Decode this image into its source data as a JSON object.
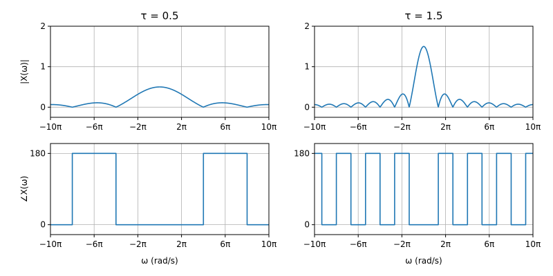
{
  "colors": {
    "line": "#1f77b4",
    "grid": "#b0b0b0",
    "axes": "#000000"
  },
  "chart_data": [
    {
      "type": "line",
      "title": "τ = 0.5",
      "xlabel": "",
      "ylabel": "|X(ω)|",
      "tau": 0.5,
      "quantity": "magnitude",
      "xlim_pi": [
        -10,
        10
      ],
      "ylim": [
        -0.25,
        2
      ],
      "xtick_labels": [
        "−10π",
        "−6π",
        "−2π",
        "2π",
        "6π",
        "10π"
      ],
      "yticks": [
        0,
        1,
        2
      ],
      "ytick_labels": [
        "0",
        "1",
        "2"
      ],
      "grid": true,
      "series": [
        {
          "sampled_points": [
            [
              -10,
              0.06
            ],
            [
              -8,
              0
            ],
            [
              -6,
              0.1
            ],
            [
              -4,
              0
            ],
            [
              -2,
              0.32
            ],
            [
              0,
              0.5
            ],
            [
              2,
              0.32
            ],
            [
              4,
              0
            ],
            [
              6,
              0.1
            ],
            [
              8,
              0
            ],
            [
              10,
              0.06
            ]
          ]
        }
      ]
    },
    {
      "type": "line",
      "title": "τ = 1.5",
      "xlabel": "",
      "ylabel": "",
      "tau": 1.5,
      "quantity": "magnitude",
      "xlim_pi": [
        -10,
        10
      ],
      "ylim": [
        -0.25,
        2
      ],
      "xtick_labels": [
        "−10π",
        "−6π",
        "−2π",
        "2π",
        "6π",
        "10π"
      ],
      "yticks": [
        0,
        1,
        2
      ],
      "ytick_labels": [
        "0",
        "1",
        "2"
      ],
      "grid": true,
      "series": [
        {
          "sampled_points": [
            [
              -1.3333,
              0
            ],
            [
              -1,
              0.3
            ],
            [
              0,
              1.5
            ],
            [
              1,
              0.3
            ],
            [
              1.3333,
              0
            ],
            [
              2,
              0.32
            ],
            [
              2.6667,
              0
            ]
          ]
        }
      ]
    },
    {
      "type": "line",
      "title": "",
      "xlabel": "ω (rad/s)",
      "ylabel": "∠X(ω)",
      "tau": 0.5,
      "quantity": "phase",
      "xlim_pi": [
        -10,
        10
      ],
      "ylim": [
        -25,
        205
      ],
      "xtick_labels": [
        "−10π",
        "−6π",
        "−2π",
        "2π",
        "6π",
        "10π"
      ],
      "yticks": [
        0,
        180
      ],
      "ytick_labels": [
        "0",
        "180"
      ],
      "grid": true,
      "series": [
        {
          "steps": [
            [
              -10,
              0
            ],
            [
              -8,
              180
            ],
            [
              -4,
              0
            ],
            [
              4,
              180
            ],
            [
              8,
              0
            ],
            [
              10,
              0
            ]
          ]
        }
      ]
    },
    {
      "type": "line",
      "title": "",
      "xlabel": "ω (rad/s)",
      "ylabel": "",
      "tau": 1.5,
      "quantity": "phase",
      "xlim_pi": [
        -10,
        10
      ],
      "ylim": [
        -25,
        205
      ],
      "xtick_labels": [
        "−10π",
        "−6π",
        "−2π",
        "2π",
        "6π",
        "10π"
      ],
      "yticks": [
        0,
        180
      ],
      "ytick_labels": [
        "0",
        "180"
      ],
      "grid": true,
      "series": [
        {
          "steps": [
            [
              -10,
              180
            ],
            [
              -9.333,
              0
            ],
            [
              -8,
              180
            ],
            [
              -6.667,
              0
            ],
            [
              -5.333,
              180
            ],
            [
              -4,
              0
            ],
            [
              -2.667,
              180
            ],
            [
              -1.333,
              0
            ],
            [
              1.333,
              180
            ],
            [
              2.667,
              0
            ],
            [
              4,
              180
            ],
            [
              5.333,
              0
            ],
            [
              6.667,
              180
            ],
            [
              8,
              0
            ],
            [
              9.333,
              180
            ]
          ]
        }
      ]
    }
  ]
}
